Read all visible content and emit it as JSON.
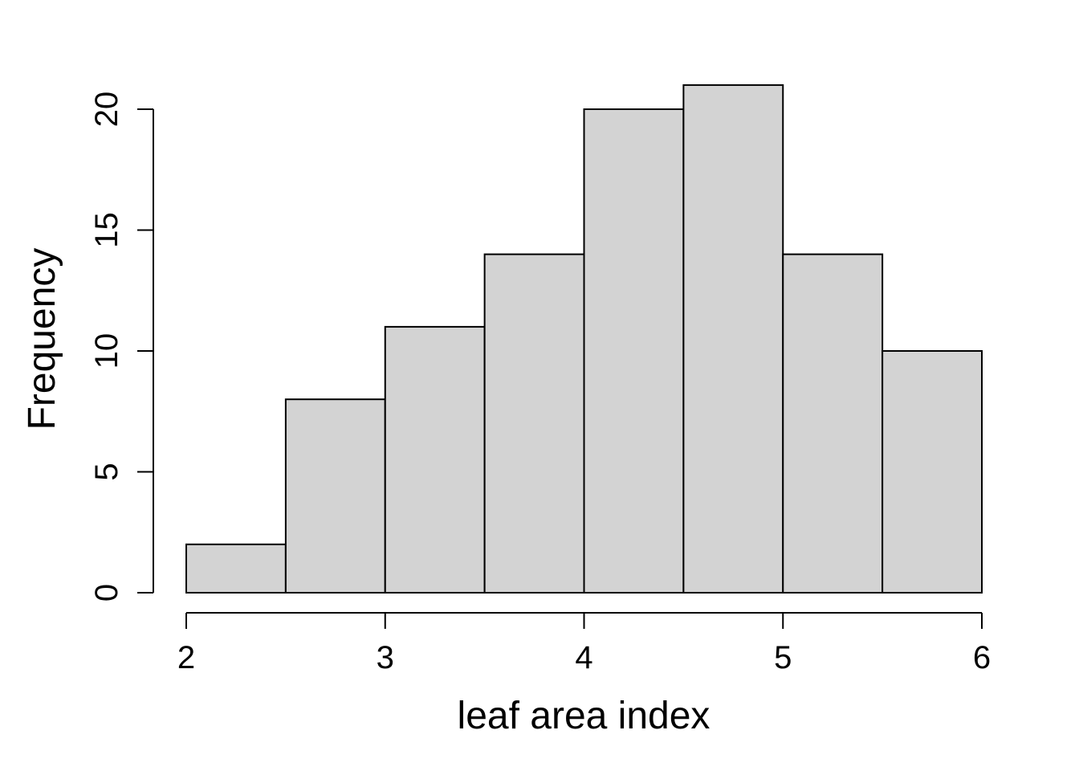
{
  "chart_data": {
    "type": "bar",
    "title": "",
    "xlabel": "leaf area index",
    "ylabel": "Frequency",
    "bins": [
      {
        "x0": 2.0,
        "x1": 2.5,
        "count": 2
      },
      {
        "x0": 2.5,
        "x1": 3.0,
        "count": 8
      },
      {
        "x0": 3.0,
        "x1": 3.5,
        "count": 11
      },
      {
        "x0": 3.5,
        "x1": 4.0,
        "count": 14
      },
      {
        "x0": 4.0,
        "x1": 4.5,
        "count": 20
      },
      {
        "x0": 4.5,
        "x1": 5.0,
        "count": 21
      },
      {
        "x0": 5.0,
        "x1": 5.5,
        "count": 14
      },
      {
        "x0": 5.5,
        "x1": 6.0,
        "count": 10
      }
    ],
    "x_ticks": [
      "2",
      "3",
      "4",
      "5",
      "6"
    ],
    "y_ticks": [
      "0",
      "5",
      "10",
      "15",
      "20"
    ],
    "xlim": [
      2,
      6
    ],
    "ylim": [
      0,
      20
    ],
    "grid": false,
    "legend": "none",
    "bar_color": "#d3d3d3",
    "edge_color": "#000000"
  }
}
